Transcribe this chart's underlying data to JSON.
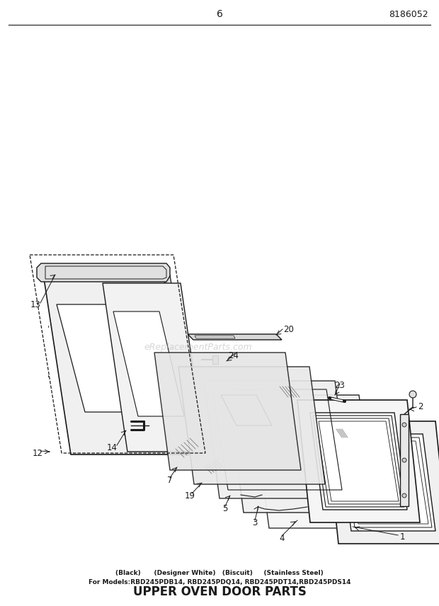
{
  "title": "UPPER OVEN DOOR PARTS",
  "subtitle1": "For Models:RBD245PDB14, RBD245PDQ14, RBD245PDT14,RBD245PDS14",
  "subtitle2": "(Black)      (Designer White)   (Biscuit)     (Stainless Steel)",
  "page_num": "6",
  "doc_num": "8186052",
  "watermark": "eReplacementParts.com",
  "bg_color": "#ffffff",
  "line_color": "#1a1a1a"
}
